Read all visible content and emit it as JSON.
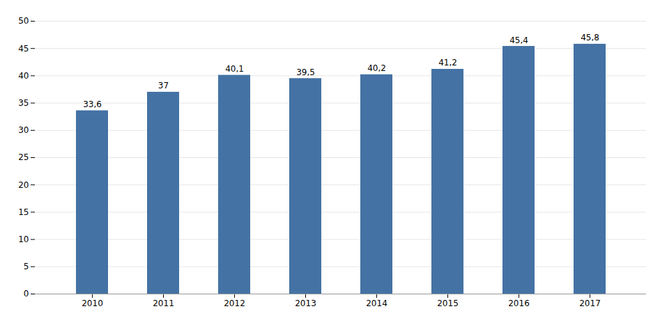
{
  "chart_data": {
    "type": "bar",
    "categories": [
      "2010",
      "2011",
      "2012",
      "2013",
      "2014",
      "2015",
      "2016",
      "2017"
    ],
    "values": [
      33.6,
      37.0,
      40.1,
      39.5,
      40.2,
      41.2,
      45.4,
      45.8
    ],
    "value_labels": [
      "33,6",
      "37",
      "40,1",
      "39,5",
      "40,2",
      "41,2",
      "45,4",
      "45,8"
    ],
    "color": "#4472A4",
    "ylim": [
      0,
      50
    ],
    "yticks": [
      0,
      5,
      10,
      15,
      20,
      25,
      30,
      35,
      40,
      45,
      50
    ],
    "grid": true,
    "data_labels": true
  }
}
